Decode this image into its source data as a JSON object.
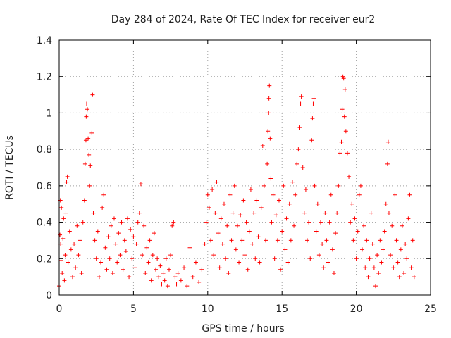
{
  "chart_data": {
    "type": "scatter",
    "title": "Day 284 of 2024, Rate Of TEC Index for receiver eur2",
    "xlabel": "GPS time / hours",
    "ylabel": "ROTI / TECUs",
    "xlim": [
      0,
      25
    ],
    "ylim": [
      0,
      1.4
    ],
    "x_ticks": [
      0,
      5,
      10,
      15,
      20,
      25
    ],
    "y_ticks": [
      0,
      0.2,
      0.4,
      0.6,
      0.8,
      1,
      1.2,
      1.4
    ],
    "x_tick_labels": [
      "0",
      "5",
      "10",
      "15",
      "20",
      "25"
    ],
    "y_tick_labels": [
      "0",
      "0.2",
      "0.4",
      "0.6",
      "0.8",
      "1",
      "1.2",
      "1.4"
    ],
    "grid": true,
    "marker": "+",
    "marker_color": "#ff0000",
    "series": [
      {
        "name": "eur2",
        "points": [
          [
            0.0,
            0.05
          ],
          [
            0.05,
            0.33
          ],
          [
            0.08,
            0.52
          ],
          [
            0.1,
            0.28
          ],
          [
            0.12,
            0.19
          ],
          [
            0.15,
            0.48
          ],
          [
            0.2,
            0.12
          ],
          [
            0.25,
            0.31
          ],
          [
            0.3,
            0.42
          ],
          [
            0.35,
            0.08
          ],
          [
            0.4,
            0.22
          ],
          [
            0.45,
            0.45
          ],
          [
            0.5,
            0.62
          ],
          [
            0.55,
            0.65
          ],
          [
            0.6,
            0.18
          ],
          [
            0.7,
            0.35
          ],
          [
            0.8,
            0.25
          ],
          [
            0.9,
            0.1
          ],
          [
            1.0,
            0.28
          ],
          [
            1.1,
            0.15
          ],
          [
            1.2,
            0.38
          ],
          [
            1.3,
            0.22
          ],
          [
            1.4,
            0.3
          ],
          [
            1.5,
            0.12
          ],
          [
            1.6,
            0.4
          ],
          [
            1.7,
            0.52
          ],
          [
            1.75,
            0.72
          ],
          [
            1.8,
            0.85
          ],
          [
            1.82,
            0.98
          ],
          [
            1.85,
            1.05
          ],
          [
            1.9,
            1.02
          ],
          [
            1.95,
            0.86
          ],
          [
            2.0,
            0.77
          ],
          [
            2.05,
            0.6
          ],
          [
            2.1,
            0.71
          ],
          [
            2.2,
            0.89
          ],
          [
            2.25,
            1.1
          ],
          [
            2.3,
            0.45
          ],
          [
            2.4,
            0.3
          ],
          [
            2.5,
            0.2
          ],
          [
            2.6,
            0.35
          ],
          [
            2.7,
            0.1
          ],
          [
            2.8,
            0.18
          ],
          [
            2.9,
            0.48
          ],
          [
            3.0,
            0.55
          ],
          [
            3.1,
            0.26
          ],
          [
            3.2,
            0.14
          ],
          [
            3.3,
            0.32
          ],
          [
            3.4,
            0.2
          ],
          [
            3.5,
            0.38
          ],
          [
            3.6,
            0.12
          ],
          [
            3.7,
            0.42
          ],
          [
            3.8,
            0.28
          ],
          [
            3.9,
            0.18
          ],
          [
            4.0,
            0.34
          ],
          [
            4.1,
            0.22
          ],
          [
            4.2,
            0.4
          ],
          [
            4.3,
            0.14
          ],
          [
            4.4,
            0.3
          ],
          [
            4.5,
            0.24
          ],
          [
            4.6,
            0.42
          ],
          [
            4.7,
            0.1
          ],
          [
            4.8,
            0.36
          ],
          [
            4.9,
            0.2
          ],
          [
            5.0,
            0.32
          ],
          [
            5.1,
            0.15
          ],
          [
            5.2,
            0.28
          ],
          [
            5.3,
            0.4
          ],
          [
            5.4,
            0.45
          ],
          [
            5.5,
            0.61
          ],
          [
            5.6,
            0.22
          ],
          [
            5.7,
            0.38
          ],
          [
            5.8,
            0.12
          ],
          [
            5.9,
            0.26
          ],
          [
            6.0,
            0.18
          ],
          [
            6.1,
            0.3
          ],
          [
            6.2,
            0.08
          ],
          [
            6.3,
            0.22
          ],
          [
            6.4,
            0.34
          ],
          [
            6.5,
            0.14
          ],
          [
            6.6,
            0.2
          ],
          [
            6.7,
            0.1
          ],
          [
            6.8,
            0.16
          ],
          [
            6.9,
            0.06
          ],
          [
            7.0,
            0.12
          ],
          [
            7.1,
            0.08
          ],
          [
            7.2,
            0.2
          ],
          [
            7.3,
            0.05
          ],
          [
            7.4,
            0.14
          ],
          [
            7.5,
            0.22
          ],
          [
            7.6,
            0.38
          ],
          [
            7.7,
            0.4
          ],
          [
            7.8,
            0.1
          ],
          [
            7.9,
            0.06
          ],
          [
            8.0,
            0.12
          ],
          [
            8.2,
            0.08
          ],
          [
            8.4,
            0.15
          ],
          [
            8.6,
            0.05
          ],
          [
            8.8,
            0.26
          ],
          [
            9.0,
            0.1
          ],
          [
            9.2,
            0.18
          ],
          [
            9.4,
            0.07
          ],
          [
            9.6,
            0.14
          ],
          [
            9.8,
            0.28
          ],
          [
            9.9,
            0.4
          ],
          [
            10.0,
            0.55
          ],
          [
            10.1,
            0.48
          ],
          [
            10.2,
            0.3
          ],
          [
            10.3,
            0.58
          ],
          [
            10.4,
            0.22
          ],
          [
            10.5,
            0.45
          ],
          [
            10.6,
            0.62
          ],
          [
            10.7,
            0.34
          ],
          [
            10.8,
            0.15
          ],
          [
            10.9,
            0.42
          ],
          [
            11.0,
            0.28
          ],
          [
            11.1,
            0.5
          ],
          [
            11.2,
            0.2
          ],
          [
            11.3,
            0.38
          ],
          [
            11.4,
            0.12
          ],
          [
            11.5,
            0.55
          ],
          [
            11.6,
            0.3
          ],
          [
            11.7,
            0.45
          ],
          [
            11.8,
            0.6
          ],
          [
            11.9,
            0.25
          ],
          [
            12.0,
            0.38
          ],
          [
            12.1,
            0.18
          ],
          [
            12.2,
            0.44
          ],
          [
            12.3,
            0.3
          ],
          [
            12.4,
            0.52
          ],
          [
            12.5,
            0.22
          ],
          [
            12.6,
            0.4
          ],
          [
            12.7,
            0.14
          ],
          [
            12.8,
            0.35
          ],
          [
            12.9,
            0.58
          ],
          [
            13.0,
            0.28
          ],
          [
            13.1,
            0.45
          ],
          [
            13.2,
            0.2
          ],
          [
            13.3,
            0.52
          ],
          [
            13.4,
            0.32
          ],
          [
            13.5,
            0.18
          ],
          [
            13.6,
            0.48
          ],
          [
            13.7,
            0.82
          ],
          [
            13.8,
            0.6
          ],
          [
            13.9,
            0.3
          ],
          [
            14.0,
            0.72
          ],
          [
            14.05,
            0.9
          ],
          [
            14.1,
            1.0
          ],
          [
            14.12,
            1.08
          ],
          [
            14.15,
            1.15
          ],
          [
            14.2,
            0.86
          ],
          [
            14.25,
            0.64
          ],
          [
            14.3,
            0.4
          ],
          [
            14.4,
            0.55
          ],
          [
            14.5,
            0.2
          ],
          [
            14.6,
            0.44
          ],
          [
            14.7,
            0.3
          ],
          [
            14.8,
            0.52
          ],
          [
            14.9,
            0.14
          ],
          [
            15.0,
            0.35
          ],
          [
            15.1,
            0.6
          ],
          [
            15.2,
            0.25
          ],
          [
            15.3,
            0.42
          ],
          [
            15.4,
            0.18
          ],
          [
            15.5,
            0.5
          ],
          [
            15.6,
            0.3
          ],
          [
            15.7,
            0.62
          ],
          [
            15.8,
            0.38
          ],
          [
            15.9,
            0.55
          ],
          [
            16.0,
            0.72
          ],
          [
            16.1,
            0.8
          ],
          [
            16.2,
            0.92
          ],
          [
            16.25,
            1.05
          ],
          [
            16.3,
            1.09
          ],
          [
            16.4,
            0.7
          ],
          [
            16.5,
            0.45
          ],
          [
            16.6,
            0.58
          ],
          [
            16.7,
            0.3
          ],
          [
            16.8,
            0.4
          ],
          [
            16.9,
            0.2
          ],
          [
            17.0,
            0.85
          ],
          [
            17.05,
            0.97
          ],
          [
            17.1,
            1.05
          ],
          [
            17.15,
            1.08
          ],
          [
            17.2,
            0.6
          ],
          [
            17.3,
            0.35
          ],
          [
            17.4,
            0.5
          ],
          [
            17.5,
            0.22
          ],
          [
            17.6,
            0.4
          ],
          [
            17.7,
            0.28
          ],
          [
            17.8,
            0.15
          ],
          [
            17.9,
            0.45
          ],
          [
            18.0,
            0.3
          ],
          [
            18.1,
            0.18
          ],
          [
            18.2,
            0.4
          ],
          [
            18.3,
            0.55
          ],
          [
            18.4,
            0.25
          ],
          [
            18.5,
            0.12
          ],
          [
            18.6,
            0.34
          ],
          [
            18.7,
            0.45
          ],
          [
            18.8,
            0.6
          ],
          [
            18.9,
            0.78
          ],
          [
            19.0,
            0.84
          ],
          [
            19.05,
            1.02
          ],
          [
            19.1,
            1.2
          ],
          [
            19.15,
            1.19
          ],
          [
            19.2,
            0.98
          ],
          [
            19.25,
            1.13
          ],
          [
            19.3,
            0.9
          ],
          [
            19.4,
            0.78
          ],
          [
            19.5,
            0.65
          ],
          [
            19.6,
            0.4
          ],
          [
            19.7,
            0.5
          ],
          [
            19.8,
            0.3
          ],
          [
            19.9,
            0.42
          ],
          [
            20.0,
            0.2
          ],
          [
            20.1,
            0.35
          ],
          [
            20.2,
            0.55
          ],
          [
            20.3,
            0.6
          ],
          [
            20.4,
            0.25
          ],
          [
            20.5,
            0.38
          ],
          [
            20.6,
            0.15
          ],
          [
            20.7,
            0.3
          ],
          [
            20.8,
            0.1
          ],
          [
            20.9,
            0.2
          ],
          [
            21.0,
            0.45
          ],
          [
            21.1,
            0.28
          ],
          [
            21.2,
            0.15
          ],
          [
            21.3,
            0.05
          ],
          [
            21.4,
            0.22
          ],
          [
            21.5,
            0.12
          ],
          [
            21.6,
            0.3
          ],
          [
            21.7,
            0.18
          ],
          [
            21.8,
            0.25
          ],
          [
            21.9,
            0.35
          ],
          [
            22.0,
            0.5
          ],
          [
            22.1,
            0.72
          ],
          [
            22.15,
            0.84
          ],
          [
            22.2,
            0.45
          ],
          [
            22.3,
            0.22
          ],
          [
            22.4,
            0.38
          ],
          [
            22.5,
            0.15
          ],
          [
            22.6,
            0.55
          ],
          [
            22.7,
            0.3
          ],
          [
            22.8,
            0.18
          ],
          [
            22.9,
            0.1
          ],
          [
            23.0,
            0.25
          ],
          [
            23.1,
            0.38
          ],
          [
            23.2,
            0.12
          ],
          [
            23.3,
            0.28
          ],
          [
            23.4,
            0.2
          ],
          [
            23.5,
            0.42
          ],
          [
            23.6,
            0.55
          ],
          [
            23.7,
            0.15
          ],
          [
            23.8,
            0.3
          ],
          [
            23.9,
            0.1
          ]
        ]
      }
    ]
  }
}
